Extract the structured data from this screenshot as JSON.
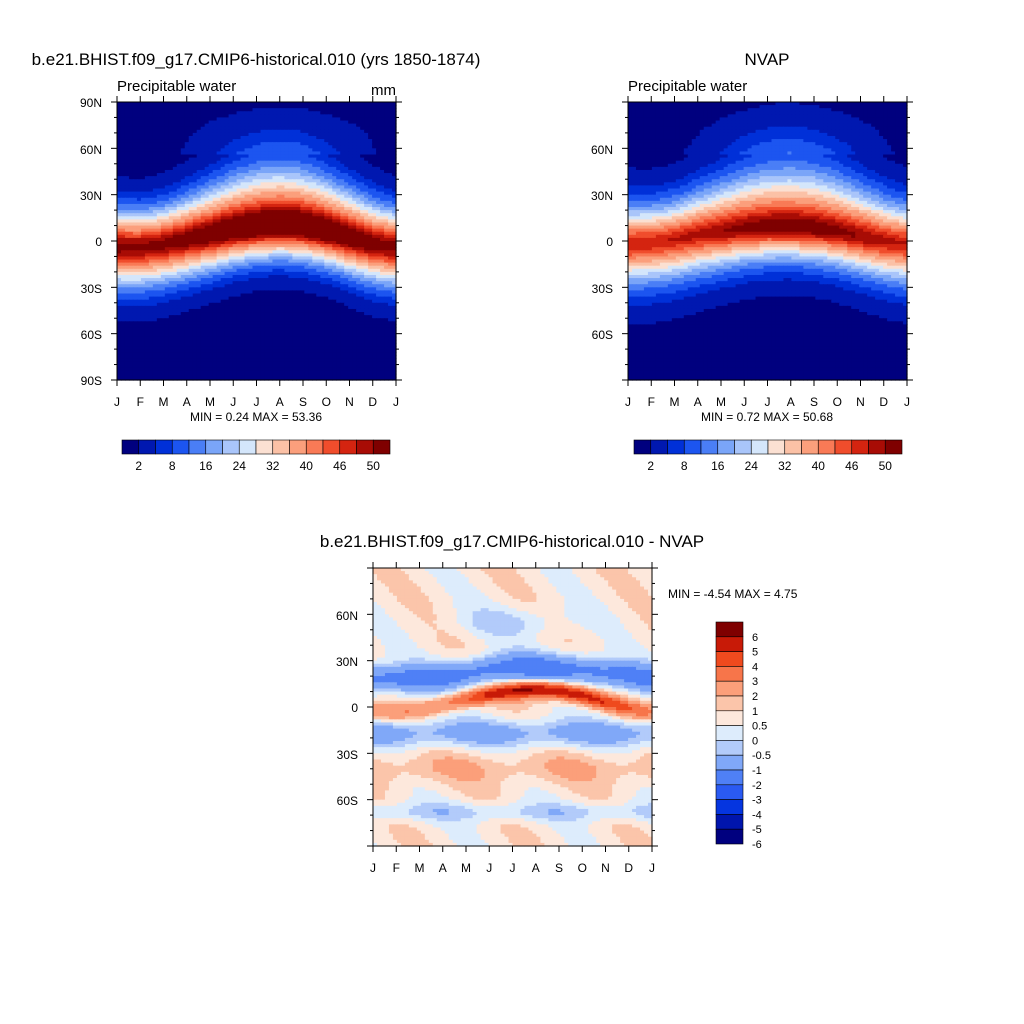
{
  "months": [
    "J",
    "F",
    "M",
    "A",
    "M",
    "J",
    "J",
    "A",
    "S",
    "O",
    "N",
    "D",
    "J"
  ],
  "palette": {
    "seq": [
      "#00007f",
      "#0018b0",
      "#0030d8",
      "#1c55f0",
      "#4a7ef6",
      "#7aa5f8",
      "#a9c5fa",
      "#d4e6fb",
      "#fbe0d2",
      "#fbc1a6",
      "#fb9f7c",
      "#f97a56",
      "#f04d2c",
      "#d42410",
      "#a80c05",
      "#7f0000"
    ],
    "div": [
      "#00007f",
      "#0015ad",
      "#0535e0",
      "#2a5af2",
      "#4f80f6",
      "#80a8f8",
      "#b2cbfa",
      "#ddecfc",
      "#fde8dc",
      "#fbc5aa",
      "#fb9f7a",
      "#f7754a",
      "#ef4a1e",
      "#c81a07",
      "#7f0000"
    ]
  },
  "chart_data": [
    {
      "type": "heatmap",
      "title": "b.e21.BHIST.f09_g17.CMIP6-historical.010 (yrs 1850-1874)",
      "subtitle_left": "Precipitable water",
      "units": "mm",
      "x_tick_labels": [
        "J",
        "F",
        "M",
        "A",
        "M",
        "J",
        "J",
        "A",
        "S",
        "O",
        "N",
        "D",
        "J"
      ],
      "y_tick_labels": [
        "90N",
        "60N",
        "30N",
        "0",
        "30S",
        "60S",
        "90S"
      ],
      "y_range": [
        -90,
        90
      ],
      "stats": "MIN =   0.24 MAX =  53.36",
      "colorbar_levels": [
        2,
        5,
        8,
        12,
        16,
        20,
        24,
        28,
        32,
        36,
        40,
        43,
        46,
        48,
        50
      ],
      "colorbar_labels": [
        "2",
        "8",
        "16",
        "24",
        "32",
        "40",
        "46",
        "50"
      ],
      "max_value": 53.36,
      "min_value": 0.24,
      "peak_lat_by_month": [
        -4,
        -4,
        -2,
        1,
        4,
        7,
        9,
        10,
        9,
        6,
        2,
        -2,
        -4
      ]
    },
    {
      "type": "heatmap",
      "title": "NVAP",
      "subtitle_left": "Precipitable water",
      "x_tick_labels": [
        "J",
        "F",
        "M",
        "A",
        "M",
        "J",
        "J",
        "A",
        "S",
        "O",
        "N",
        "D",
        "J"
      ],
      "y_tick_labels": [
        "60N",
        "30N",
        "0",
        "30S",
        "60S"
      ],
      "y_range": [
        -90,
        90
      ],
      "stats": "MIN =   0.72 MAX =  50.68",
      "colorbar_levels": [
        2,
        5,
        8,
        12,
        16,
        20,
        24,
        28,
        32,
        36,
        40,
        43,
        46,
        48,
        50
      ],
      "colorbar_labels": [
        "2",
        "8",
        "16",
        "24",
        "32",
        "40",
        "46",
        "50"
      ],
      "max_value": 50.68,
      "min_value": 0.72,
      "peak_lat_by_month": [
        -2,
        -1,
        1,
        4,
        6,
        8,
        9,
        9,
        8,
        6,
        3,
        0,
        -2
      ]
    },
    {
      "type": "heatmap",
      "title": "b.e21.BHIST.f09_g17.CMIP6-historical.010 - NVAP",
      "x_tick_labels": [
        "J",
        "F",
        "M",
        "A",
        "M",
        "J",
        "J",
        "A",
        "S",
        "O",
        "N",
        "D",
        "J"
      ],
      "y_tick_labels": [
        "60N",
        "30N",
        "0",
        "30S",
        "60S"
      ],
      "y_range": [
        -90,
        90
      ],
      "stats": "MIN =  -4.54 MAX =   4.75",
      "colorbar_levels": [
        -6,
        -5,
        -4,
        -3,
        -2,
        -1,
        -0.5,
        0,
        0.5,
        1,
        2,
        3,
        4,
        5,
        6
      ],
      "colorbar_labels": [
        "6",
        "5",
        "4",
        "3",
        "2",
        "1",
        "0.5",
        "0",
        "-0.5",
        "-1",
        "-2",
        "-3",
        "-4",
        "-5",
        "-6"
      ],
      "max_value": 4.75,
      "min_value": -4.54
    }
  ]
}
